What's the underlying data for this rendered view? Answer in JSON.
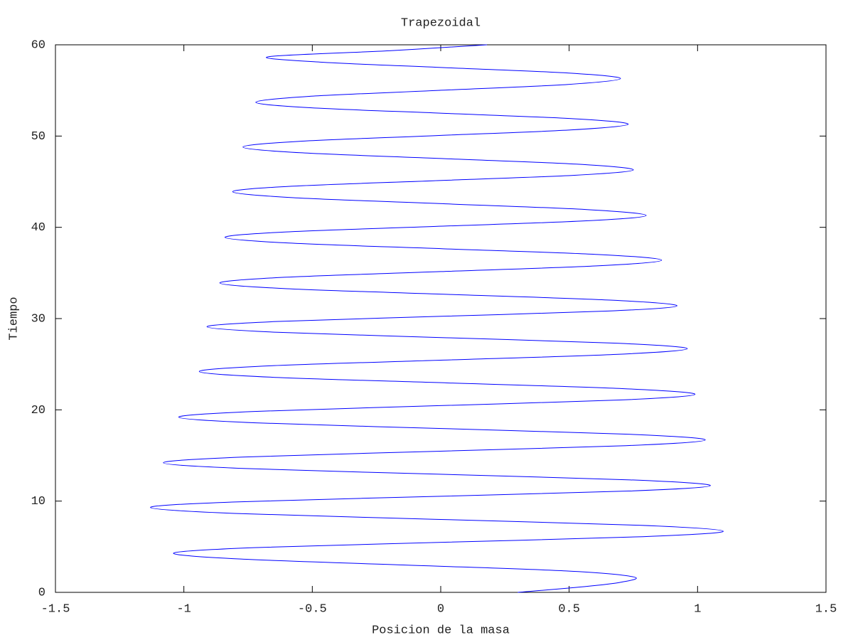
{
  "chart_data": {
    "type": "line",
    "title": "Trapezoidal",
    "xlabel": "Posicion de la masa",
    "ylabel": "Tiempo",
    "color": "#0000ff",
    "xlim": [
      -1.5,
      1.5
    ],
    "xticks": [
      -1.5,
      -1,
      -0.5,
      0,
      0.5,
      1,
      1.5
    ],
    "ylim": [
      0,
      60
    ],
    "yticks": [
      0,
      10,
      20,
      30,
      40,
      50,
      60
    ],
    "x": [
      0.3,
      0.55,
      0.7,
      0.75,
      0.488,
      -0.145,
      -0.778,
      -1.04,
      -0.726,
      0.03,
      0.786,
      1.1,
      0.773,
      -0.015,
      -0.803,
      -1.13,
      -0.811,
      -0.04,
      0.731,
      1.05,
      0.738,
      -0.015,
      -0.768,
      -1.08,
      -0.771,
      -0.025,
      0.721,
      1.03,
      0.73,
      0.005,
      -0.72,
      -1.02,
      -0.726,
      -0.015,
      0.696,
      0.99,
      0.707,
      0.025,
      -0.657,
      -0.94,
      -0.662,
      0.01,
      0.682,
      0.96,
      0.686,
      0.025,
      -0.636,
      -0.91,
      -0.642,
      0.005,
      0.652,
      0.92,
      0.659,
      0.03,
      -0.599,
      -0.86,
      -0.608,
      0,
      0.608,
      0.86,
      0.611,
      0.01,
      -0.591,
      -0.84,
      -0.6,
      -0.02,
      0.56,
      0.8,
      0.564,
      -0.005,
      -0.574,
      -0.81,
      -0.581,
      -0.03,
      0.521,
      0.75,
      0.527,
      -0.01,
      -0.547,
      -0.77,
      -0.55,
      -0.02,
      0.51,
      0.73,
      0.518,
      0.005,
      -0.508,
      -0.72,
      -0.512,
      -0.01,
      0.492,
      0.7,
      0.499,
      0.015,
      -0.469,
      -0.67,
      -0.2,
      0.18
    ],
    "values": [
      0,
      0.6,
      1.1,
      1.7,
      2.35,
      3,
      3.65,
      4.3,
      4.9,
      5.5,
      6.1,
      6.7,
      7.35,
      8,
      8.65,
      9.3,
      9.9,
      10.5,
      11.1,
      11.7,
      12.325,
      12.95,
      13.575,
      14.2,
      14.825,
      15.45,
      16.075,
      16.7,
      17.325,
      17.95,
      18.575,
      19.2,
      19.825,
      20.45,
      21.075,
      21.7,
      22.325,
      22.95,
      23.575,
      24.2,
      24.825,
      25.45,
      26.075,
      26.7,
      27.3,
      27.9,
      28.5,
      29.1,
      29.675,
      30.25,
      30.825,
      31.4,
      32.025,
      32.65,
      33.275,
      33.9,
      34.525,
      35.15,
      35.775,
      36.4,
      37.025,
      37.65,
      38.275,
      38.9,
      39.5,
      40.1,
      40.7,
      41.3,
      41.95,
      42.6,
      43.25,
      43.9,
      44.5,
      45.1,
      45.7,
      46.3,
      46.925,
      47.55,
      48.175,
      48.8,
      49.425,
      50.05,
      50.675,
      51.3,
      51.9,
      52.5,
      53.1,
      53.7,
      54.35,
      55,
      55.65,
      56.3,
      56.9,
      57.5,
      58.1,
      58.7,
      59.35,
      60
    ]
  }
}
